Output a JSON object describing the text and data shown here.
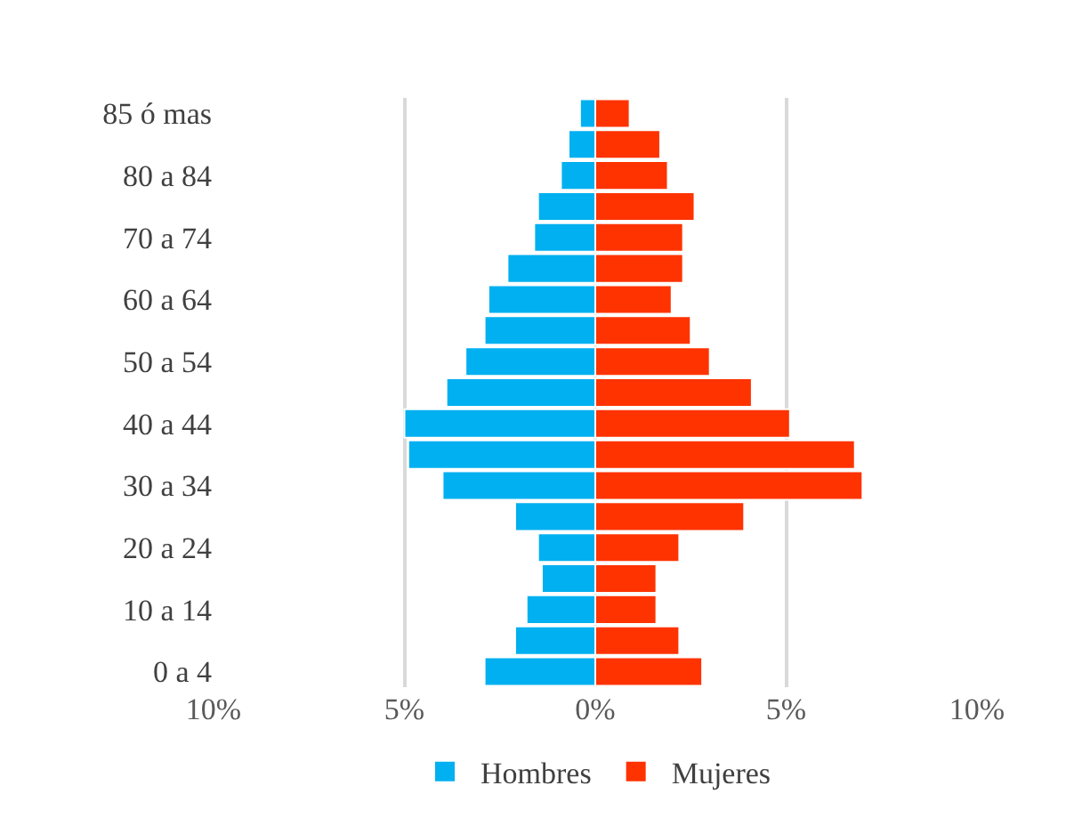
{
  "chart_data": {
    "type": "bar",
    "orientation": "horizontal",
    "categories": [
      "85 ó mas",
      null,
      "80 a 84",
      null,
      "70 a 74",
      null,
      "60 a 64",
      null,
      "50 a 54",
      null,
      "40 a 44",
      null,
      "30 a 34",
      null,
      "20 a 24",
      null,
      "10 a 14",
      null,
      "0 a 4"
    ],
    "series": [
      {
        "name": "Hombres",
        "color": "#00b0f0",
        "values": [
          -0.4,
          -0.7,
          -0.9,
          -1.5,
          -1.6,
          -2.3,
          -2.8,
          -2.9,
          -3.4,
          -3.9,
          -5.0,
          -4.9,
          -4.0,
          -2.1,
          -1.5,
          -1.4,
          -1.8,
          -2.1,
          -2.9
        ]
      },
      {
        "name": "Mujeres",
        "color": "#ff3300",
        "values": [
          0.9,
          1.7,
          1.9,
          2.6,
          2.3,
          2.3,
          2.0,
          2.5,
          3.0,
          4.1,
          5.1,
          6.8,
          7.0,
          3.9,
          2.2,
          1.6,
          1.6,
          2.2,
          2.8
        ]
      }
    ],
    "xlim": [
      -10,
      10
    ],
    "stacked": true,
    "xticks": [
      {
        "value": -10,
        "label": "10%"
      },
      {
        "value": -5,
        "label": "5%"
      },
      {
        "value": 0,
        "label": "0%"
      },
      {
        "value": 5,
        "label": "5%"
      },
      {
        "value": 10,
        "label": "10%"
      }
    ],
    "grid": "x",
    "legend": "bottom"
  }
}
